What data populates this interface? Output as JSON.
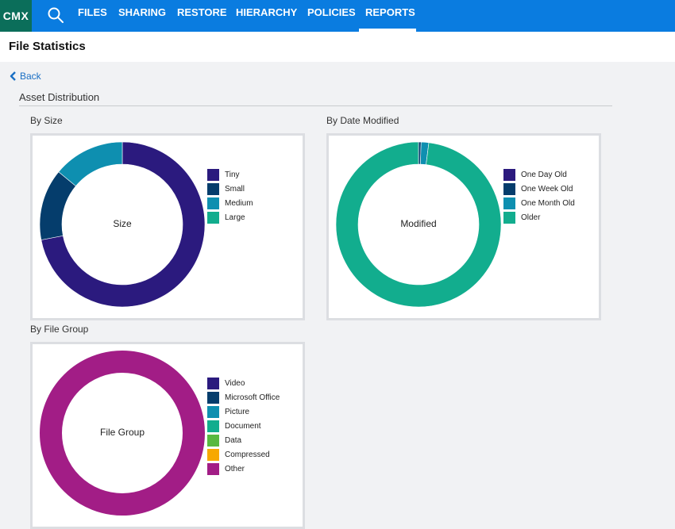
{
  "app": {
    "logo": "CMX"
  },
  "nav": {
    "items": [
      {
        "label": "FILES"
      },
      {
        "label": "SHARING"
      },
      {
        "label": "RESTORE"
      },
      {
        "label": "HIERARCHY"
      },
      {
        "label": "POLICIES"
      },
      {
        "label": "REPORTS",
        "active": true
      }
    ]
  },
  "header": {
    "title": "File Statistics"
  },
  "back": {
    "label": "Back"
  },
  "section": {
    "title": "Asset Distribution"
  },
  "charts": [
    {
      "title": "By Size",
      "center": "Size",
      "legend": [
        {
          "label": "Tiny",
          "color": "#2b1a7e"
        },
        {
          "label": "Small",
          "color": "#053d6c"
        },
        {
          "label": "Medium",
          "color": "#0e8fb0"
        },
        {
          "label": "Large",
          "color": "#12ad8e"
        }
      ]
    },
    {
      "title": "By Date Modified",
      "center": "Modified",
      "legend": [
        {
          "label": "One Day Old",
          "color": "#2b1a7e"
        },
        {
          "label": "One Week Old",
          "color": "#053d6c"
        },
        {
          "label": "One Month Old",
          "color": "#0e8fb0"
        },
        {
          "label": "Older",
          "color": "#12ad8e"
        }
      ]
    },
    {
      "title": "By File Group",
      "center": "File Group",
      "legend": [
        {
          "label": "Video",
          "color": "#2b1a7e"
        },
        {
          "label": "Microsoft Office",
          "color": "#053d6c"
        },
        {
          "label": "Picture",
          "color": "#0e8fb0"
        },
        {
          "label": "Document",
          "color": "#12ad8e"
        },
        {
          "label": "Data",
          "color": "#58b940"
        },
        {
          "label": "Compressed",
          "color": "#f7a800"
        },
        {
          "label": "Other",
          "color": "#a21d86"
        }
      ]
    }
  ],
  "chart_data": [
    {
      "type": "pie",
      "title": "By Size",
      "categories": [
        "Tiny",
        "Small",
        "Medium",
        "Large"
      ],
      "values": [
        72,
        14,
        14,
        0
      ]
    },
    {
      "type": "pie",
      "title": "By Date Modified",
      "categories": [
        "One Day Old",
        "One Week Old",
        "One Month Old",
        "Older"
      ],
      "values": [
        0,
        0.5,
        1.5,
        98
      ]
    },
    {
      "type": "pie",
      "title": "By File Group",
      "categories": [
        "Video",
        "Microsoft Office",
        "Picture",
        "Document",
        "Data",
        "Compressed",
        "Other"
      ],
      "values": [
        0,
        0,
        0,
        0,
        0,
        0,
        100
      ]
    }
  ]
}
